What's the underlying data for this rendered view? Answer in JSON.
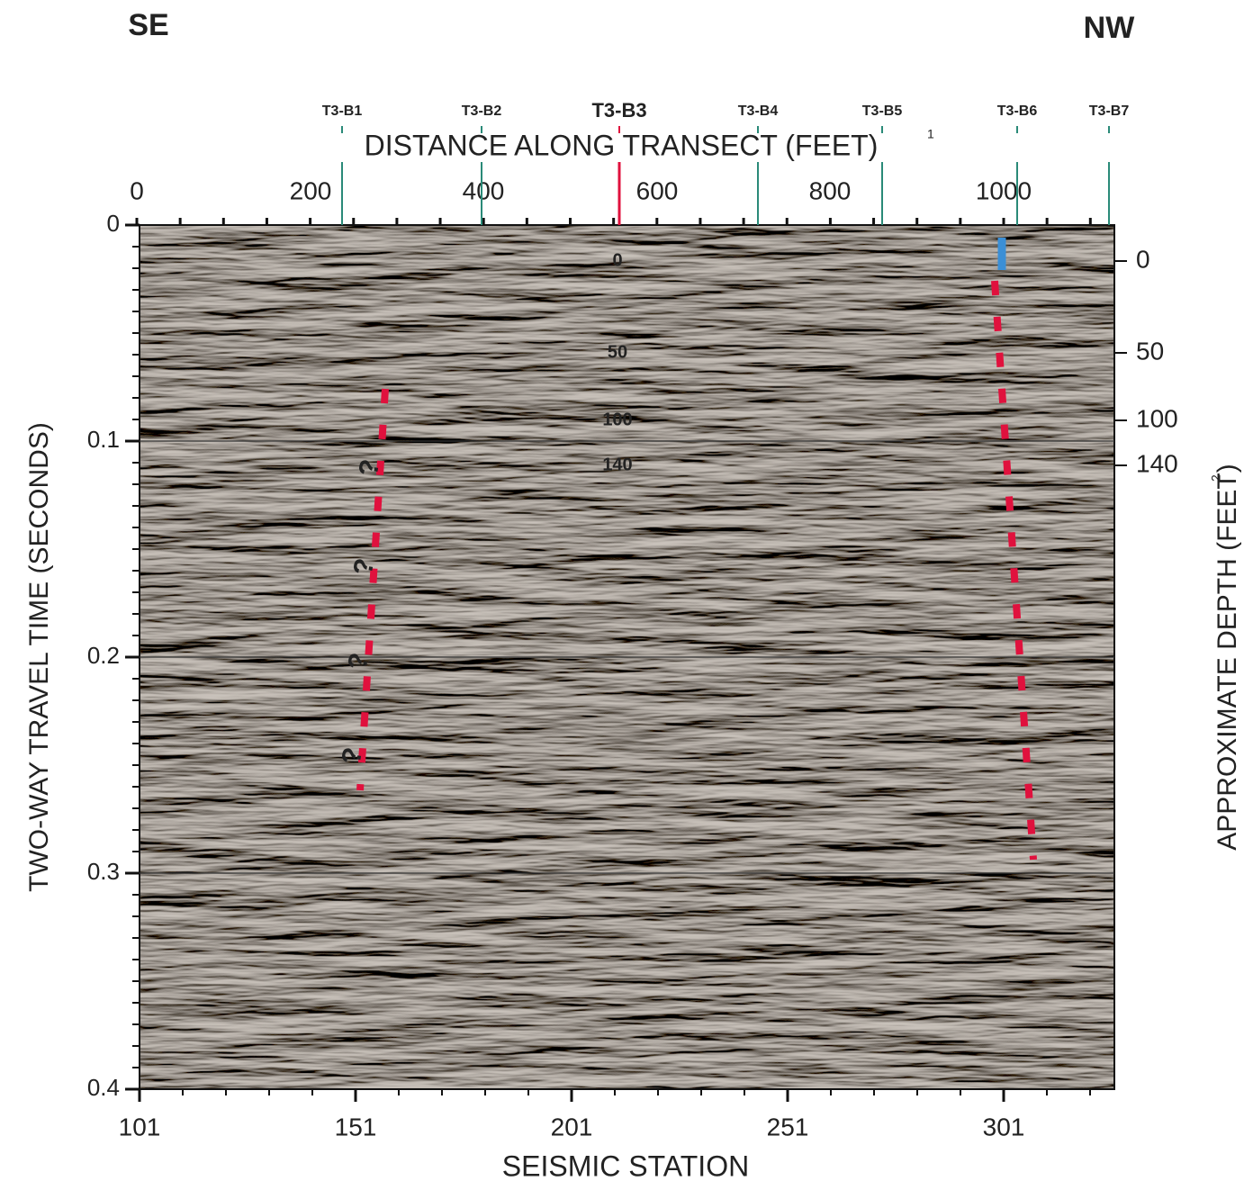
{
  "header": {
    "left": "SE",
    "right": "NW"
  },
  "boreholes": [
    {
      "label": "T3-B1"
    },
    {
      "label": "T3-B2"
    },
    {
      "label": "T3-B3"
    },
    {
      "label": "T3-B4"
    },
    {
      "label": "T3-B5"
    },
    {
      "label": "T3-B6"
    },
    {
      "label": "T3-B7"
    }
  ],
  "top_axis": {
    "title": "DISTANCE ALONG TRANSECT (FEET)",
    "footnote": "1",
    "ticks": [
      0,
      200,
      400,
      600,
      800,
      1000
    ]
  },
  "left_axis": {
    "title": "TWO-WAY TRAVEL TIME (SECONDS)",
    "ticks": [
      0,
      0.1,
      0.2,
      0.3,
      0.4
    ]
  },
  "bottom_axis": {
    "title": "SEISMIC STATION",
    "ticks": [
      101,
      151,
      201,
      251,
      301
    ]
  },
  "right_axis": {
    "title": "APPROXIMATE DEPTH (FEET)",
    "footnote": "2",
    "ticks": [
      0,
      50,
      100,
      140
    ]
  },
  "depth_labels": [
    0,
    50,
    100,
    140
  ],
  "question_marks": [
    "?",
    "?",
    "?",
    "?"
  ]
}
